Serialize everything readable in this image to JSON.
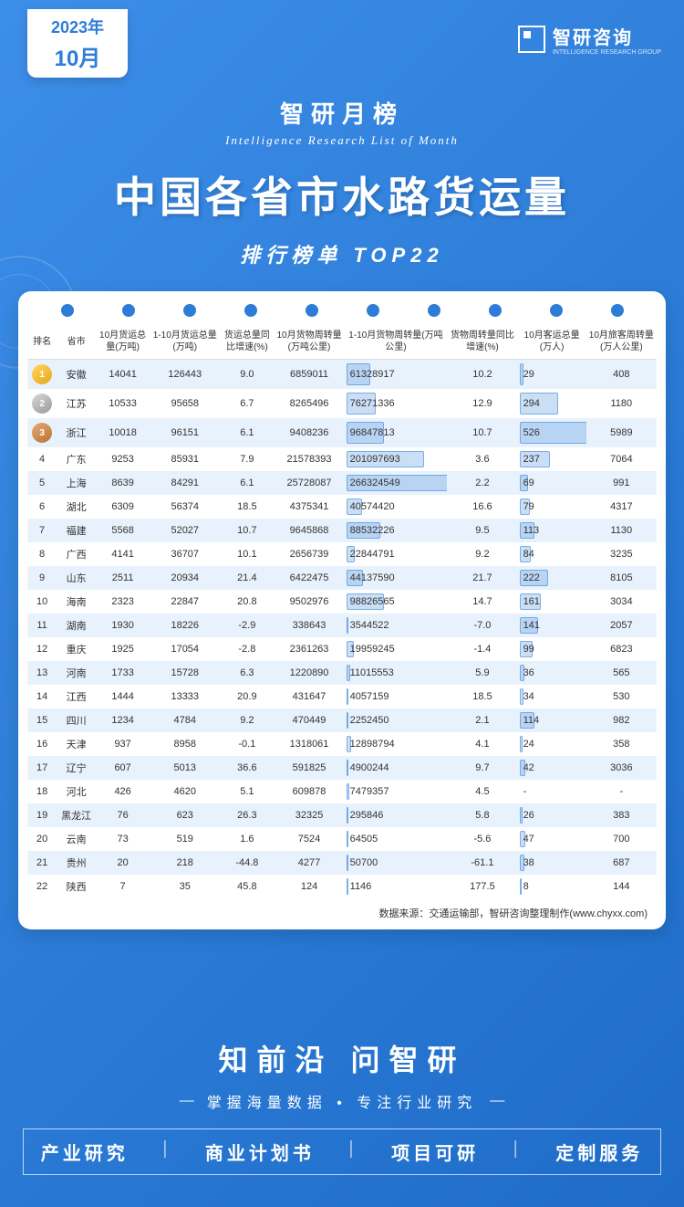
{
  "meta": {
    "date_year": "2023年",
    "date_month": "10月",
    "brand_name": "智研咨询",
    "brand_sub": "INTELLIGENCE RESEARCH GROUP"
  },
  "header": {
    "sub1": "智研月榜",
    "sub1_en": "Intelligence Research List of Month",
    "main_title": "中国各省市水路货运量",
    "sub2": "排行榜单  TOP22"
  },
  "table": {
    "columns": [
      "排名",
      "省市",
      "10月货运总量(万吨)",
      "1-10月货运总量(万吨)",
      "货运总量同比增速(%)",
      "10月货物周转量(万吨公里)",
      "1-10月货物周转量(万吨公里)",
      "货物周转量同比增速(%)",
      "10月客运总量(万人)",
      "10月旅客周转量(万人公里)"
    ],
    "bar1_max": 266324549,
    "bar2_max": 526,
    "bar_fill_color": "rgba(45,125,216,0.25)",
    "bar_border_color": "rgba(45,125,216,0.5)",
    "row_odd_bg": "#e8f2fc",
    "row_even_bg": "#ffffff",
    "rows": [
      {
        "rank": 1,
        "prov": "安徽",
        "c1": 14041,
        "c2": 126443,
        "c3": "9.0",
        "c4": 6859011,
        "c5": 61328917,
        "c6": "10.2",
        "c7": 29,
        "c8": 408
      },
      {
        "rank": 2,
        "prov": "江苏",
        "c1": 10533,
        "c2": 95658,
        "c3": "6.7",
        "c4": 8265496,
        "c5": 76271336,
        "c6": "12.9",
        "c7": 294,
        "c8": 1180
      },
      {
        "rank": 3,
        "prov": "浙江",
        "c1": 10018,
        "c2": 96151,
        "c3": "6.1",
        "c4": 9408236,
        "c5": 96847813,
        "c6": "10.7",
        "c7": 526,
        "c8": 5989
      },
      {
        "rank": 4,
        "prov": "广东",
        "c1": 9253,
        "c2": 85931,
        "c3": "7.9",
        "c4": 21578393,
        "c5": 201097693,
        "c6": "3.6",
        "c7": 237,
        "c8": 7064
      },
      {
        "rank": 5,
        "prov": "上海",
        "c1": 8639,
        "c2": 84291,
        "c3": "6.1",
        "c4": 25728087,
        "c5": 266324549,
        "c6": "2.2",
        "c7": 69,
        "c8": 991
      },
      {
        "rank": 6,
        "prov": "湖北",
        "c1": 6309,
        "c2": 56374,
        "c3": "18.5",
        "c4": 4375341,
        "c5": 40574420,
        "c6": "16.6",
        "c7": 79,
        "c8": 4317
      },
      {
        "rank": 7,
        "prov": "福建",
        "c1": 5568,
        "c2": 52027,
        "c3": "10.7",
        "c4": 9645868,
        "c5": 88532226,
        "c6": "9.5",
        "c7": 113,
        "c8": 1130
      },
      {
        "rank": 8,
        "prov": "广西",
        "c1": 4141,
        "c2": 36707,
        "c3": "10.1",
        "c4": 2656739,
        "c5": 22844791,
        "c6": "9.2",
        "c7": 84,
        "c8": 3235
      },
      {
        "rank": 9,
        "prov": "山东",
        "c1": 2511,
        "c2": 20934,
        "c3": "21.4",
        "c4": 6422475,
        "c5": 44137590,
        "c6": "21.7",
        "c7": 222,
        "c8": 8105
      },
      {
        "rank": 10,
        "prov": "海南",
        "c1": 2323,
        "c2": 22847,
        "c3": "20.8",
        "c4": 9502976,
        "c5": 98826565,
        "c6": "14.7",
        "c7": 161,
        "c8": 3034
      },
      {
        "rank": 11,
        "prov": "湖南",
        "c1": 1930,
        "c2": 18226,
        "c3": "-2.9",
        "c4": 338643,
        "c5": 3544522,
        "c6": "-7.0",
        "c7": 141,
        "c8": 2057
      },
      {
        "rank": 12,
        "prov": "重庆",
        "c1": 1925,
        "c2": 17054,
        "c3": "-2.8",
        "c4": 2361263,
        "c5": 19959245,
        "c6": "-1.4",
        "c7": 99,
        "c8": 6823
      },
      {
        "rank": 13,
        "prov": "河南",
        "c1": 1733,
        "c2": 15728,
        "c3": "6.3",
        "c4": 1220890,
        "c5": 11015553,
        "c6": "5.9",
        "c7": 36,
        "c8": 565
      },
      {
        "rank": 14,
        "prov": "江西",
        "c1": 1444,
        "c2": 13333,
        "c3": "20.9",
        "c4": 431647,
        "c5": 4057159,
        "c6": "18.5",
        "c7": 34,
        "c8": 530
      },
      {
        "rank": 15,
        "prov": "四川",
        "c1": 1234,
        "c2": 4784,
        "c3": "9.2",
        "c4": 470449,
        "c5": 2252450,
        "c6": "2.1",
        "c7": 114,
        "c8": 982
      },
      {
        "rank": 16,
        "prov": "天津",
        "c1": 937,
        "c2": 8958,
        "c3": "-0.1",
        "c4": 1318061,
        "c5": 12898794,
        "c6": "4.1",
        "c7": 24,
        "c8": 358
      },
      {
        "rank": 17,
        "prov": "辽宁",
        "c1": 607,
        "c2": 5013,
        "c3": "36.6",
        "c4": 591825,
        "c5": 4900244,
        "c6": "9.7",
        "c7": 42,
        "c8": 3036
      },
      {
        "rank": 18,
        "prov": "河北",
        "c1": 426,
        "c2": 4620,
        "c3": "5.1",
        "c4": 609878,
        "c5": 7479357,
        "c6": "4.5",
        "c7": "-",
        "c8": "-"
      },
      {
        "rank": 19,
        "prov": "黑龙江",
        "c1": 76,
        "c2": 623,
        "c3": "26.3",
        "c4": 32325,
        "c5": 295846,
        "c6": "5.8",
        "c7": 26,
        "c8": 383
      },
      {
        "rank": 20,
        "prov": "云南",
        "c1": 73,
        "c2": 519,
        "c3": "1.6",
        "c4": 7524,
        "c5": 64505,
        "c6": "-5.6",
        "c7": 47,
        "c8": 700
      },
      {
        "rank": 21,
        "prov": "贵州",
        "c1": 20,
        "c2": 218,
        "c3": "-44.8",
        "c4": 4277,
        "c5": 50700,
        "c6": "-61.1",
        "c7": 38,
        "c8": 687
      },
      {
        "rank": 22,
        "prov": "陕西",
        "c1": 7,
        "c2": 35,
        "c3": "45.8",
        "c4": 124,
        "c5": 1146,
        "c6": "177.5",
        "c7": 8,
        "c8": 144
      }
    ],
    "source": "数据来源：交通运输部，智研咨询整理制作(www.chyxx.com)"
  },
  "footer": {
    "title": "知前沿 问智研",
    "sub": "掌握海量数据 • 专注行业研究",
    "services": [
      "产业研究",
      "商业计划书",
      "项目可研",
      "定制服务"
    ]
  },
  "colors": {
    "bg_gradient_from": "#3d8ee8",
    "bg_gradient_to": "#1e6cc8",
    "accent": "#2d7dd8",
    "medal_gold": "#e8a617",
    "medal_silver": "#999999",
    "medal_bronze": "#b87333"
  }
}
